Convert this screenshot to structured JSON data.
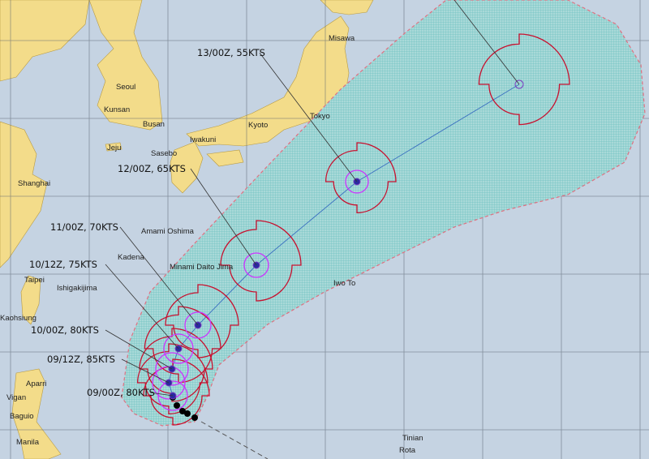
{
  "colors": {
    "ocean": "#c5d3e2",
    "land": "#f3dc8a",
    "cone": "#8fd0cf",
    "cone_border": "#e07080",
    "wind_radii": "#c8102e",
    "inner_radii": "#cc33ff",
    "track": "#3a6fc0",
    "center": "#2a2aa0",
    "past": "#000000"
  },
  "places": [
    {
      "name": "Misawa",
      "lon": 141.4,
      "lat": 40.7
    },
    {
      "name": "Seoul",
      "lon": 127.0,
      "lat": 37.5
    },
    {
      "name": "Kunsan",
      "lon": 126.7,
      "lat": 36.0
    },
    {
      "name": "Busan",
      "lon": 129.0,
      "lat": 35.1
    },
    {
      "name": "Jeju",
      "lon": 126.5,
      "lat": 33.5
    },
    {
      "name": "Sasebo",
      "lon": 129.7,
      "lat": 33.2
    },
    {
      "name": "Iwakuni",
      "lon": 132.2,
      "lat": 34.2
    },
    {
      "name": "Kyoto",
      "lon": 135.8,
      "lat": 35.0
    },
    {
      "name": "Tokyo",
      "lon": 139.7,
      "lat": 35.7
    },
    {
      "name": "Shanghai",
      "lon": 121.5,
      "lat": 31.2
    },
    {
      "name": "Amami Oshima",
      "lon": 129.5,
      "lat": 28.3
    },
    {
      "name": "Kadena",
      "lon": 127.8,
      "lat": 26.4
    },
    {
      "name": "Minami Daito Jima",
      "lon": 131.2,
      "lat": 25.8
    },
    {
      "name": "Taipei",
      "lon": 121.5,
      "lat": 25.0
    },
    {
      "name": "Ishigakijima",
      "lon": 124.2,
      "lat": 24.3
    },
    {
      "name": "Kaohsiung",
      "lon": 120.3,
      "lat": 22.6
    },
    {
      "name": "Iwo To",
      "lon": 141.3,
      "lat": 24.8
    },
    {
      "name": "Aparri",
      "lon": 121.6,
      "lat": 18.4
    },
    {
      "name": "Vigan",
      "lon": 120.4,
      "lat": 17.6
    },
    {
      "name": "Baguio",
      "lon": 120.6,
      "lat": 16.4
    },
    {
      "name": "Manila",
      "lon": 121.0,
      "lat": 14.6
    },
    {
      "name": "Tinian",
      "lon": 145.6,
      "lat": 15.0
    },
    {
      "name": "Rota",
      "lon": 145.2,
      "lat": 14.2
    }
  ],
  "forecast": [
    {
      "label": "09/00Z,  80KTS"
    },
    {
      "label": "09/12Z,  85KTS"
    },
    {
      "label": "10/00Z,  80KTS"
    },
    {
      "label": "10/12Z,  75KTS"
    },
    {
      "label": "11/00Z,  70KTS"
    },
    {
      "label": "12/00Z,  65KTS"
    },
    {
      "label": "13/00Z,  55KTS"
    }
  ]
}
